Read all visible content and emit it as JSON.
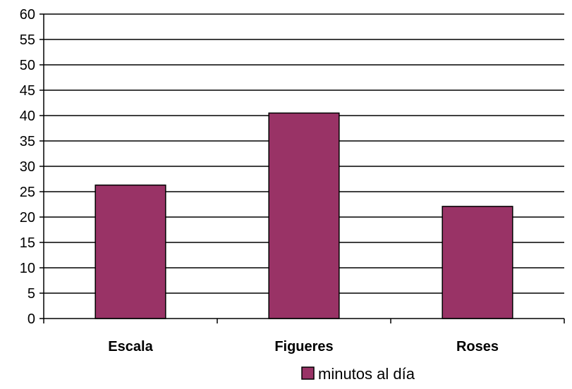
{
  "chart_data": {
    "type": "bar",
    "categories": [
      "Escala",
      "Figueres",
      "Roses"
    ],
    "series": [
      {
        "name": "minutos al día",
        "values": [
          26.3,
          40.5,
          22.1
        ],
        "color": "#993366"
      }
    ],
    "title": "",
    "xlabel": "",
    "ylabel": "",
    "ylim": [
      0,
      60
    ],
    "yticks": [
      0,
      5,
      10,
      15,
      20,
      25,
      30,
      35,
      40,
      45,
      50,
      55,
      60
    ],
    "grid": true,
    "legend_position": "bottom",
    "bar_outline_color": "#000000",
    "gridline_color": "#000000"
  }
}
